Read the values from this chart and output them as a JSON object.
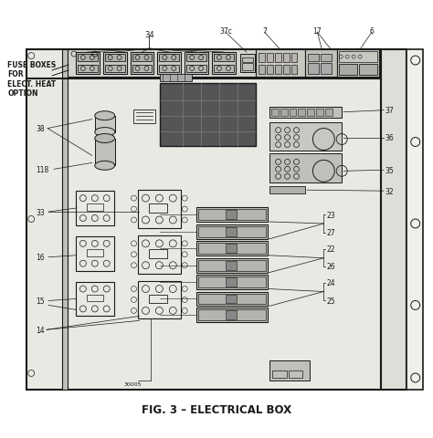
{
  "title": "FIG. 3 – ELECTRICAL BOX",
  "title_fontsize": 8.5,
  "bg_color": "#ffffff",
  "fig_width": 4.74,
  "fig_height": 4.81,
  "lc": "#1a1a1a",
  "diagram_fc": "#e8e7e2",
  "labels": {
    "fuse_box_text": "FUSE BOXES\nFOR\nELECT. HEAT\nOPTION",
    "n34": "34",
    "n37c": "37c",
    "n7": "7",
    "n17": "17",
    "n6": "6",
    "n37": "37",
    "n36": "36",
    "n35": "35",
    "n38": "38",
    "n118": "118",
    "n33": "33",
    "n16": "16",
    "n15": "15",
    "n32": "32",
    "n23": "23",
    "n27": "27",
    "n22": "22",
    "n26": "26",
    "n24": "24",
    "n25": "25",
    "n14": "14",
    "n30005": "30005"
  }
}
